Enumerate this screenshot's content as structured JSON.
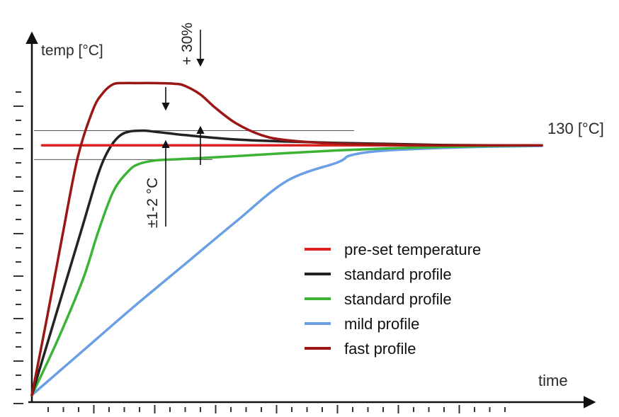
{
  "chart_data": {
    "type": "line",
    "title": "",
    "xlabel": "time",
    "ylabel": "temp [°C]",
    "setpoint_label": "130 [°C]",
    "setpoint_value": 130,
    "annotations": {
      "overshoot_fast": "+ 30%",
      "tolerance": "±1-2 °C"
    },
    "xlim": [
      0,
      100
    ],
    "ylim": [
      0,
      100
    ],
    "grid": false,
    "legend_position": "bottom-right",
    "series": [
      {
        "name": "pre-set temperature",
        "color": "#d9231f",
        "x": [
          2,
          100
        ],
        "y": [
          73.5,
          73.5
        ]
      },
      {
        "name": "standard profile",
        "color": "#222222",
        "x": [
          0,
          5,
          10,
          13,
          15,
          17,
          19,
          22,
          24,
          27,
          30,
          40,
          50,
          60,
          70,
          80,
          90,
          100
        ],
        "y": [
          0,
          25,
          50,
          65,
          72,
          76,
          77.5,
          77.8,
          77.5,
          77,
          76.5,
          75.2,
          74.6,
          74.2,
          73.9,
          73.6,
          73.5,
          73.5
        ]
      },
      {
        "name": "standard profile",
        "color": "#3cb335",
        "x": [
          0,
          5,
          10,
          13,
          16,
          19,
          21,
          24,
          27,
          30,
          40,
          50,
          60,
          70,
          80,
          90,
          100
        ],
        "y": [
          0,
          16,
          34,
          48,
          60,
          66,
          68,
          69,
          69.3,
          69.5,
          70.3,
          71.2,
          72,
          72.6,
          73,
          73.3,
          73.5
        ]
      },
      {
        "name": "mild profile",
        "color": "#6a9fe6",
        "x": [
          0,
          10,
          20,
          30,
          40,
          50,
          60,
          62,
          65,
          68,
          72,
          80,
          90,
          100
        ],
        "y": [
          0,
          13,
          26,
          38.5,
          51,
          63,
          68.5,
          70.3,
          71.3,
          71.8,
          72.2,
          72.7,
          73.1,
          73.3
        ]
      },
      {
        "name": "fast profile",
        "color": "#9b1716",
        "x": [
          0,
          3,
          6,
          9,
          12,
          14,
          16,
          18,
          20,
          24,
          28,
          30,
          33,
          36,
          40,
          45,
          50,
          60,
          70,
          80,
          90,
          100
        ],
        "y": [
          0,
          23,
          47,
          70,
          84,
          89,
          91.5,
          91.8,
          91.8,
          91.8,
          91.6,
          91,
          88.5,
          84.5,
          80,
          76.5,
          75,
          74,
          73.7,
          73.5,
          73.5,
          73.5
        ]
      }
    ]
  }
}
